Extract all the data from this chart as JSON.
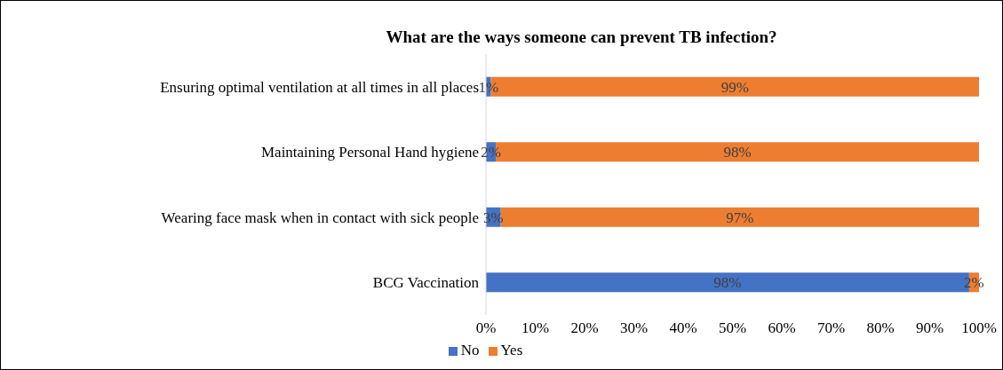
{
  "chart_data": {
    "type": "bar",
    "orientation": "horizontal",
    "stacked": true,
    "title": "What are the ways someone can prevent TB infection?",
    "categories": [
      "Ensuring optimal  ventilation  at all times  in all places",
      "Maintaining  Personal Hand hygiene",
      "Wearing face mask when in contact with sick people",
      "BCG Vaccination"
    ],
    "series": [
      {
        "name": "No",
        "color": "#4472c4",
        "values": [
          1,
          2,
          3,
          98
        ],
        "value_labels": [
          "1%",
          "2%",
          "3%",
          "98%"
        ]
      },
      {
        "name": "Yes",
        "color": "#ed7d31",
        "values": [
          99,
          98,
          97,
          2
        ],
        "value_labels": [
          "99%",
          "98%",
          "97%",
          "2%"
        ]
      }
    ],
    "xlim": [
      0,
      100
    ],
    "xticks": [
      {
        "value": 0,
        "label": "0%"
      },
      {
        "value": 10,
        "label": "10%"
      },
      {
        "value": 20,
        "label": "20%"
      },
      {
        "value": 30,
        "label": "30%"
      },
      {
        "value": 40,
        "label": "40%"
      },
      {
        "value": 50,
        "label": "50%"
      },
      {
        "value": 60,
        "label": "60%"
      },
      {
        "value": 70,
        "label": "70%"
      },
      {
        "value": 80,
        "label": "80%"
      },
      {
        "value": 90,
        "label": "90%"
      },
      {
        "value": 100,
        "label": "100%"
      }
    ],
    "legend": "bottom",
    "grid": false
  }
}
